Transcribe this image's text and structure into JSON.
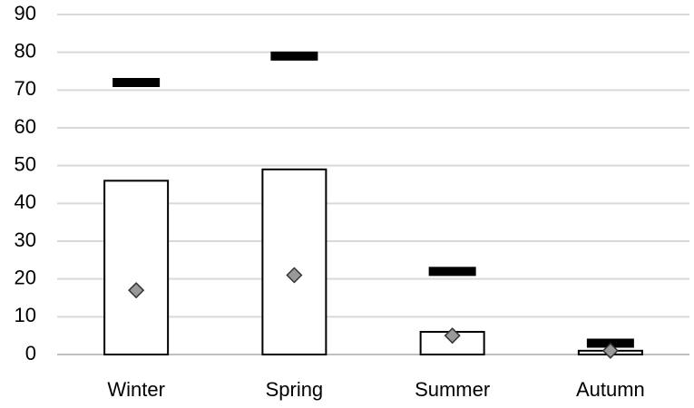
{
  "chart_data": {
    "type": "bar",
    "categories": [
      "Winter",
      "Spring",
      "Summer",
      "Autumn"
    ],
    "series": [
      {
        "kind": "bar",
        "color": "#ffffff",
        "values": [
          46,
          49,
          6,
          1
        ]
      },
      {
        "kind": "dash",
        "color": "#000000",
        "values": [
          72,
          79,
          22,
          3
        ]
      },
      {
        "kind": "diamond",
        "color": "#999999",
        "values": [
          17,
          21,
          5,
          1
        ]
      }
    ],
    "ylim": [
      0,
      90
    ],
    "yticks": [
      0,
      10,
      20,
      30,
      40,
      50,
      60,
      70,
      80,
      90
    ],
    "grid": true
  }
}
